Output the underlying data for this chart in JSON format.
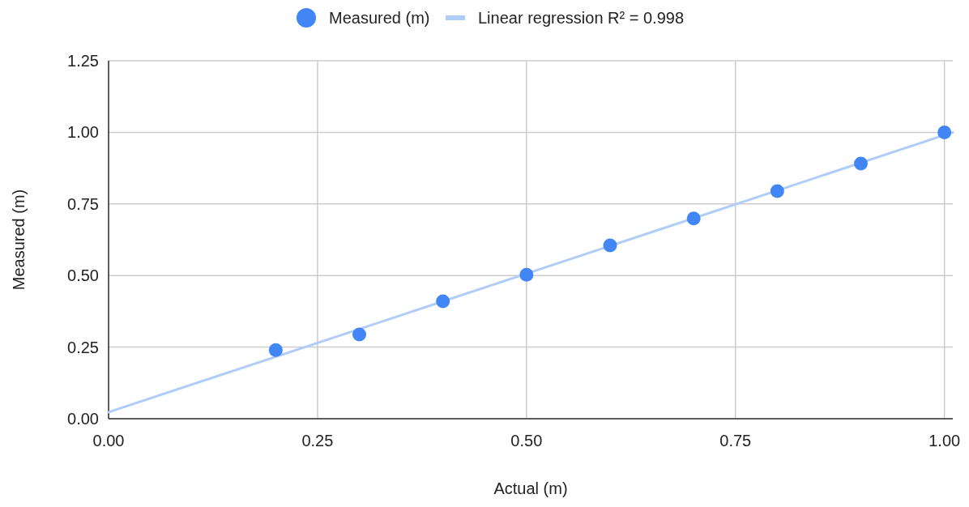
{
  "chart_data": {
    "type": "scatter",
    "xlabel": "Actual (m)",
    "ylabel": "Measured (m)",
    "xlim": [
      0,
      1.01
    ],
    "xticks": [
      {
        "value": 0,
        "label": "0.00"
      },
      {
        "value": 0.25,
        "label": "0.25"
      },
      {
        "value": 0.5,
        "label": "0.50"
      },
      {
        "value": 0.75,
        "label": "0.75"
      },
      {
        "value": 1,
        "label": "1.00"
      }
    ],
    "ylim": [
      0,
      1.25
    ],
    "yticks": [
      {
        "value": 0,
        "label": "0.00"
      },
      {
        "value": 0.25,
        "label": "0.25"
      },
      {
        "value": 0.5,
        "label": "0.50"
      },
      {
        "value": 0.75,
        "label": "0.75"
      },
      {
        "value": 1,
        "label": "1.00"
      },
      {
        "value": 1.25,
        "label": "1.25"
      }
    ],
    "grid": true,
    "legend": "top",
    "series": [
      {
        "name": "Measured (m)",
        "color": "#4285f4",
        "marker": "circle",
        "x": [
          0.2,
          0.3,
          0.4,
          0.5,
          0.6,
          0.7,
          0.8,
          0.9,
          1.0
        ],
        "values": [
          0.24,
          0.294,
          0.41,
          0.503,
          0.605,
          0.699,
          0.795,
          0.891,
          1.0
        ]
      },
      {
        "name": "Linear regression R² = 0.998",
        "type": "line",
        "color": "#b0cdf9",
        "marker": "none",
        "line_style": "solid",
        "x": [
          0,
          1.01
        ],
        "values": [
          0.023,
          1.0
        ]
      }
    ]
  }
}
